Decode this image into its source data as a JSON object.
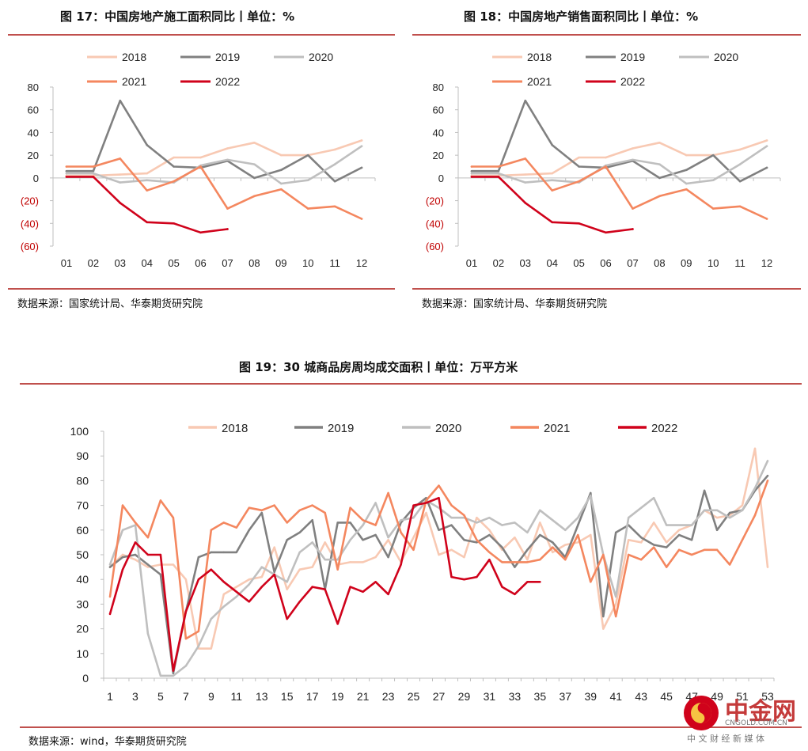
{
  "colors": {
    "s2018": "#f8c9b3",
    "s2019": "#808080",
    "s2020": "#bfbfbf",
    "s2021": "#f4875f",
    "s2022": "#d0021b",
    "rule": "#c0504d",
    "negative_tick": "#c00000"
  },
  "fig17": {
    "title": "图 17：中国房地产施工面积同比丨单位：%",
    "source": "数据来源：国家统计局、华泰期货研究院"
  },
  "fig18": {
    "title": "图 18：中国房地产销售面积同比丨单位：%",
    "source": "数据来源：国家统计局、华泰期货研究院"
  },
  "fig19": {
    "title": "图 19：30 城商品房周均成交面积丨单位：万平方米",
    "source": "数据来源：wind，华泰期货研究院"
  },
  "watermark": {
    "brand": "中金网",
    "domain": "CNGOLD.COM.CN",
    "tagline": "中 文 财 经 新 媒 体"
  },
  "chart_data": [
    {
      "type": "line",
      "months": [
        "01",
        "02",
        "03",
        "04",
        "05",
        "06",
        "07",
        "08",
        "09",
        "10",
        "11",
        "12"
      ],
      "ylim": [
        -60,
        80
      ],
      "yticks": [
        80,
        60,
        40,
        20,
        0,
        -20,
        -40,
        -60
      ],
      "ytick_labels": [
        "80",
        "60",
        "40",
        "20",
        "0",
        "(20)",
        "(40)",
        "(60)"
      ],
      "series": [
        {
          "name": "2018",
          "color": "#f8c9b3",
          "values": [
            2,
            2,
            3,
            4,
            18,
            18,
            26,
            31,
            20,
            20,
            25,
            33
          ]
        },
        {
          "name": "2019",
          "color": "#808080",
          "values": [
            6,
            6,
            68,
            29,
            10,
            9,
            15,
            0,
            7,
            20,
            -3,
            9
          ]
        },
        {
          "name": "2020",
          "color": "#bfbfbf",
          "values": [
            4,
            4,
            -4,
            -2,
            -4,
            11,
            16,
            12,
            -5,
            -2,
            12,
            28
          ]
        },
        {
          "name": "2021",
          "color": "#f4875f",
          "values": [
            10,
            10,
            17,
            -11,
            -3,
            10,
            -27,
            -16,
            -10,
            -27,
            -25,
            -36
          ]
        },
        {
          "name": "2022",
          "color": "#d0021b",
          "values": [
            1,
            1,
            -22,
            -39,
            -40,
            -48,
            -45,
            null,
            null,
            null,
            null,
            null
          ]
        }
      ]
    },
    {
      "type": "line",
      "months": [
        "01",
        "02",
        "03",
        "04",
        "05",
        "06",
        "07",
        "08",
        "09",
        "10",
        "11",
        "12"
      ],
      "ylim": [
        -60,
        80
      ],
      "yticks": [
        80,
        60,
        40,
        20,
        0,
        -20,
        -40,
        -60
      ],
      "ytick_labels": [
        "80",
        "60",
        "40",
        "20",
        "0",
        "(20)",
        "(40)",
        "(60)"
      ],
      "series": [
        {
          "name": "2018",
          "color": "#f8c9b3",
          "values": [
            2,
            2,
            3,
            4,
            18,
            18,
            26,
            31,
            20,
            20,
            25,
            33
          ]
        },
        {
          "name": "2019",
          "color": "#808080",
          "values": [
            6,
            6,
            68,
            29,
            10,
            9,
            15,
            0,
            7,
            20,
            -3,
            9
          ]
        },
        {
          "name": "2020",
          "color": "#bfbfbf",
          "values": [
            4,
            4,
            -4,
            -2,
            -4,
            11,
            16,
            12,
            -5,
            -2,
            12,
            28
          ]
        },
        {
          "name": "2021",
          "color": "#f4875f",
          "values": [
            10,
            10,
            17,
            -11,
            -3,
            10,
            -27,
            -16,
            -10,
            -27,
            -25,
            -36
          ]
        },
        {
          "name": "2022",
          "color": "#d0021b",
          "values": [
            1,
            1,
            -22,
            -39,
            -40,
            -48,
            -45,
            null,
            null,
            null,
            null,
            null
          ]
        }
      ]
    },
    {
      "type": "line",
      "xticks": [
        1,
        3,
        5,
        7,
        9,
        11,
        13,
        15,
        17,
        19,
        21,
        23,
        25,
        27,
        29,
        31,
        33,
        35,
        37,
        39,
        41,
        43,
        45,
        47,
        49,
        51,
        53
      ],
      "ylim": [
        0,
        100
      ],
      "yticks": [
        100,
        90,
        80,
        70,
        60,
        50,
        40,
        30,
        20,
        10,
        0
      ],
      "series": [
        {
          "name": "2018",
          "color": "#f8c9b3",
          "values": [
            45,
            50,
            48,
            45,
            46,
            46,
            40,
            12,
            12,
            34,
            37,
            40,
            41,
            53,
            36,
            44,
            45,
            55,
            46,
            47,
            47,
            49,
            56,
            47,
            57,
            67,
            50,
            52,
            49,
            65,
            60,
            52,
            57,
            48,
            63,
            51,
            54,
            55,
            58,
            20,
            30,
            56,
            55,
            63,
            55,
            60,
            62,
            68,
            65,
            66,
            70,
            93,
            45
          ]
        },
        {
          "name": "2019",
          "color": "#808080",
          "values": [
            45,
            49,
            50,
            46,
            42,
            2,
            27,
            49,
            51,
            51,
            51,
            60,
            67,
            43,
            56,
            59,
            64,
            36,
            63,
            63,
            56,
            58,
            49,
            63,
            69,
            73,
            60,
            62,
            56,
            55,
            58,
            53,
            45,
            52,
            58,
            55,
            49,
            62,
            75,
            25,
            59,
            62,
            57,
            54,
            53,
            58,
            56,
            76,
            60,
            67,
            68,
            76,
            82
          ]
        },
        {
          "name": "2020",
          "color": "#bfbfbf",
          "values": [
            46,
            60,
            62,
            18,
            1,
            1,
            5,
            13,
            24,
            29,
            33,
            38,
            45,
            42,
            39,
            51,
            55,
            48,
            48,
            56,
            62,
            71,
            57,
            64,
            65,
            72,
            69,
            65,
            65,
            63,
            65,
            62,
            63,
            59,
            68,
            64,
            60,
            65,
            74,
            50,
            33,
            65,
            69,
            73,
            62,
            62,
            62,
            68,
            68,
            65,
            68,
            77,
            88
          ]
        },
        {
          "name": "2021",
          "color": "#f4875f",
          "values": [
            33,
            70,
            63,
            57,
            72,
            65,
            16,
            19,
            60,
            63,
            61,
            69,
            68,
            70,
            63,
            68,
            70,
            67,
            44,
            69,
            64,
            62,
            75,
            59,
            52,
            72,
            78,
            70,
            66,
            56,
            51,
            47,
            47,
            47,
            48,
            53,
            48,
            58,
            39,
            50,
            25,
            50,
            48,
            53,
            45,
            52,
            50,
            52,
            52,
            46,
            56,
            66,
            80
          ]
        },
        {
          "name": "2022",
          "color": "#d0021b",
          "values": [
            26,
            44,
            55,
            50,
            50,
            3,
            27,
            40,
            44,
            39,
            35,
            31,
            37,
            42,
            24,
            31,
            37,
            36,
            22,
            37,
            35,
            39,
            34,
            46,
            70,
            71,
            73,
            41,
            40,
            41,
            48,
            37,
            34,
            39,
            39,
            null,
            null,
            null,
            null,
            null,
            null,
            null,
            null,
            null,
            null,
            null,
            null,
            null,
            null,
            null,
            null,
            null,
            null
          ]
        }
      ]
    }
  ]
}
